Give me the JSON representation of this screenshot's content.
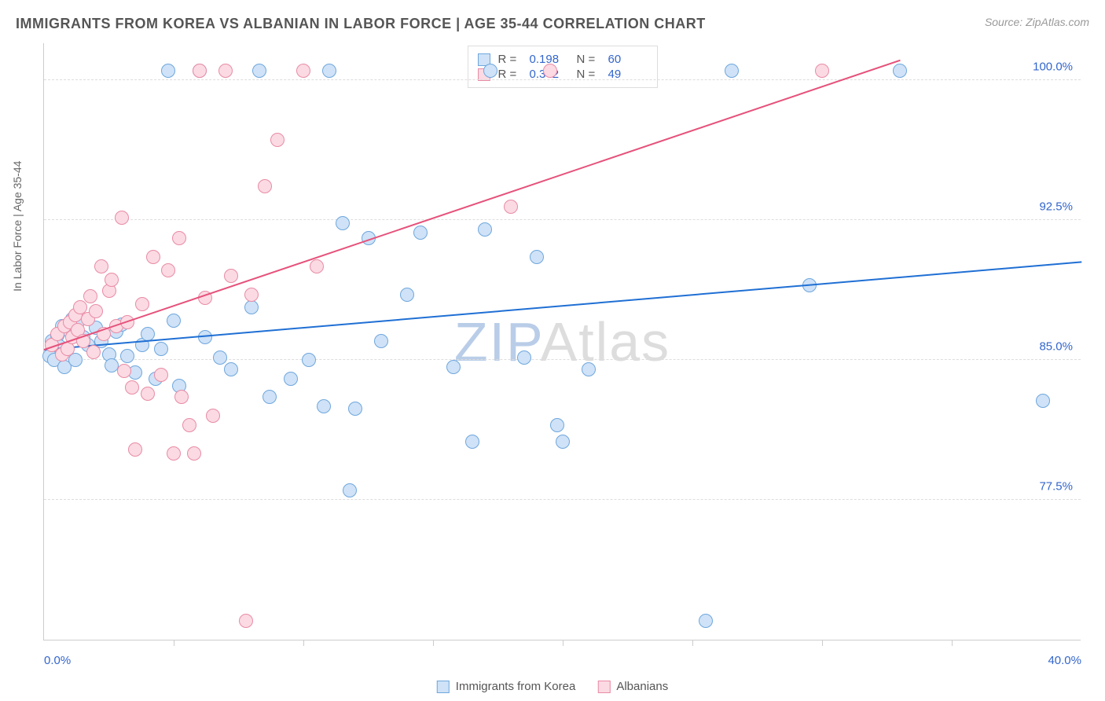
{
  "title": "IMMIGRANTS FROM KOREA VS ALBANIAN IN LABOR FORCE | AGE 35-44 CORRELATION CHART",
  "source": "Source: ZipAtlas.com",
  "ylabel": "In Labor Force | Age 35-44",
  "watermark": {
    "text": "ZIPAtlas",
    "zip_color": "#b9cde8",
    "atlas_color": "#dddddd"
  },
  "chart": {
    "type": "scatter",
    "xlim": [
      0,
      40
    ],
    "ylim": [
      70,
      102
    ],
    "xtick_labels": [
      {
        "v": 0,
        "label": "0.0%"
      },
      {
        "v": 40,
        "label": "40.0%"
      }
    ],
    "xtick_minor": [
      5,
      10,
      15,
      20,
      25,
      30,
      35
    ],
    "ytick_labels": [
      {
        "v": 77.5,
        "label": "77.5%"
      },
      {
        "v": 85.0,
        "label": "85.0%"
      },
      {
        "v": 92.5,
        "label": "92.5%"
      },
      {
        "v": 100.0,
        "label": "100.0%"
      }
    ],
    "background_color": "#ffffff",
    "grid_color": "#dddddd",
    "axis_color": "#cccccc",
    "series": [
      {
        "key": "korea",
        "label": "Immigrants from Korea",
        "fill": "#cfe2f7",
        "stroke": "#6fa7dd",
        "line_color": "#1f6fd4",
        "r": 0.198,
        "n": 60,
        "trend": {
          "x1": 0,
          "y1": 85.5,
          "x2": 40,
          "y2": 90.2
        },
        "marker_radius": 9,
        "points": [
          [
            0.2,
            85.2
          ],
          [
            0.3,
            86.0
          ],
          [
            0.4,
            85.0
          ],
          [
            0.5,
            86.3
          ],
          [
            0.6,
            85.7
          ],
          [
            0.7,
            86.8
          ],
          [
            0.8,
            84.6
          ],
          [
            1.0,
            86.5
          ],
          [
            1.1,
            87.2
          ],
          [
            1.2,
            85.0
          ],
          [
            1.3,
            87.0
          ],
          [
            1.5,
            86.2
          ],
          [
            1.7,
            85.8
          ],
          [
            2.0,
            86.7
          ],
          [
            2.2,
            86.0
          ],
          [
            2.5,
            85.3
          ],
          [
            2.6,
            84.7
          ],
          [
            2.8,
            86.5
          ],
          [
            3.0,
            86.9
          ],
          [
            3.2,
            85.2
          ],
          [
            3.5,
            84.3
          ],
          [
            3.8,
            85.8
          ],
          [
            4.0,
            86.4
          ],
          [
            4.3,
            84.0
          ],
          [
            4.5,
            85.6
          ],
          [
            4.8,
            100.5
          ],
          [
            5.0,
            87.1
          ],
          [
            5.2,
            83.6
          ],
          [
            6.0,
            100.5
          ],
          [
            6.2,
            86.2
          ],
          [
            6.8,
            85.1
          ],
          [
            7.2,
            84.5
          ],
          [
            8.0,
            87.8
          ],
          [
            8.3,
            100.5
          ],
          [
            8.7,
            83.0
          ],
          [
            9.5,
            84.0
          ],
          [
            10.2,
            85.0
          ],
          [
            10.8,
            82.5
          ],
          [
            11.0,
            100.5
          ],
          [
            11.5,
            92.3
          ],
          [
            11.8,
            78.0
          ],
          [
            12.0,
            82.4
          ],
          [
            12.5,
            91.5
          ],
          [
            13.0,
            86.0
          ],
          [
            14.0,
            88.5
          ],
          [
            14.5,
            91.8
          ],
          [
            15.8,
            84.6
          ],
          [
            16.5,
            80.6
          ],
          [
            17.0,
            92.0
          ],
          [
            17.2,
            100.5
          ],
          [
            18.5,
            85.1
          ],
          [
            19.0,
            90.5
          ],
          [
            19.8,
            81.5
          ],
          [
            20.0,
            80.6
          ],
          [
            21.0,
            84.5
          ],
          [
            25.5,
            71.0
          ],
          [
            26.5,
            100.5
          ],
          [
            29.5,
            89.0
          ],
          [
            33.0,
            100.5
          ],
          [
            38.5,
            82.8
          ]
        ]
      },
      {
        "key": "albanian",
        "label": "Albanians",
        "fill": "#fbdae3",
        "stroke": "#e98ba5",
        "line_color": "#e6517a",
        "r": 0.342,
        "n": 49,
        "trend": {
          "x1": 0,
          "y1": 85.5,
          "x2": 33,
          "y2": 101.0
        },
        "marker_radius": 9,
        "points": [
          [
            0.3,
            85.8
          ],
          [
            0.5,
            86.4
          ],
          [
            0.7,
            85.3
          ],
          [
            0.8,
            86.8
          ],
          [
            0.9,
            85.6
          ],
          [
            1.0,
            87.0
          ],
          [
            1.1,
            86.2
          ],
          [
            1.2,
            87.4
          ],
          [
            1.3,
            86.6
          ],
          [
            1.4,
            87.8
          ],
          [
            1.5,
            86.0
          ],
          [
            1.7,
            87.2
          ],
          [
            1.8,
            88.4
          ],
          [
            1.9,
            85.4
          ],
          [
            2.0,
            87.6
          ],
          [
            2.2,
            90.0
          ],
          [
            2.3,
            86.4
          ],
          [
            2.5,
            88.7
          ],
          [
            2.6,
            89.3
          ],
          [
            2.8,
            86.8
          ],
          [
            3.0,
            92.6
          ],
          [
            3.1,
            84.4
          ],
          [
            3.2,
            87.0
          ],
          [
            3.4,
            83.5
          ],
          [
            3.5,
            80.2
          ],
          [
            3.8,
            88.0
          ],
          [
            4.0,
            83.2
          ],
          [
            4.2,
            90.5
          ],
          [
            4.5,
            84.2
          ],
          [
            4.8,
            89.8
          ],
          [
            5.0,
            80.0
          ],
          [
            5.2,
            91.5
          ],
          [
            5.3,
            83.0
          ],
          [
            5.6,
            81.5
          ],
          [
            5.8,
            80.0
          ],
          [
            6.0,
            100.5
          ],
          [
            6.2,
            88.3
          ],
          [
            6.5,
            82.0
          ],
          [
            7.0,
            100.5
          ],
          [
            7.2,
            89.5
          ],
          [
            8.0,
            88.5
          ],
          [
            8.5,
            94.3
          ],
          [
            9.0,
            96.8
          ],
          [
            10.0,
            100.5
          ],
          [
            10.5,
            90.0
          ],
          [
            7.8,
            71.0
          ],
          [
            18.0,
            93.2
          ],
          [
            19.5,
            100.5
          ],
          [
            30.0,
            100.5
          ]
        ]
      }
    ]
  },
  "legend": {
    "items": [
      {
        "series": "korea",
        "label": "Immigrants from Korea"
      },
      {
        "series": "albanian",
        "label": "Albanians"
      }
    ]
  },
  "stats_labels": {
    "r": "R  =",
    "n": "N  ="
  }
}
